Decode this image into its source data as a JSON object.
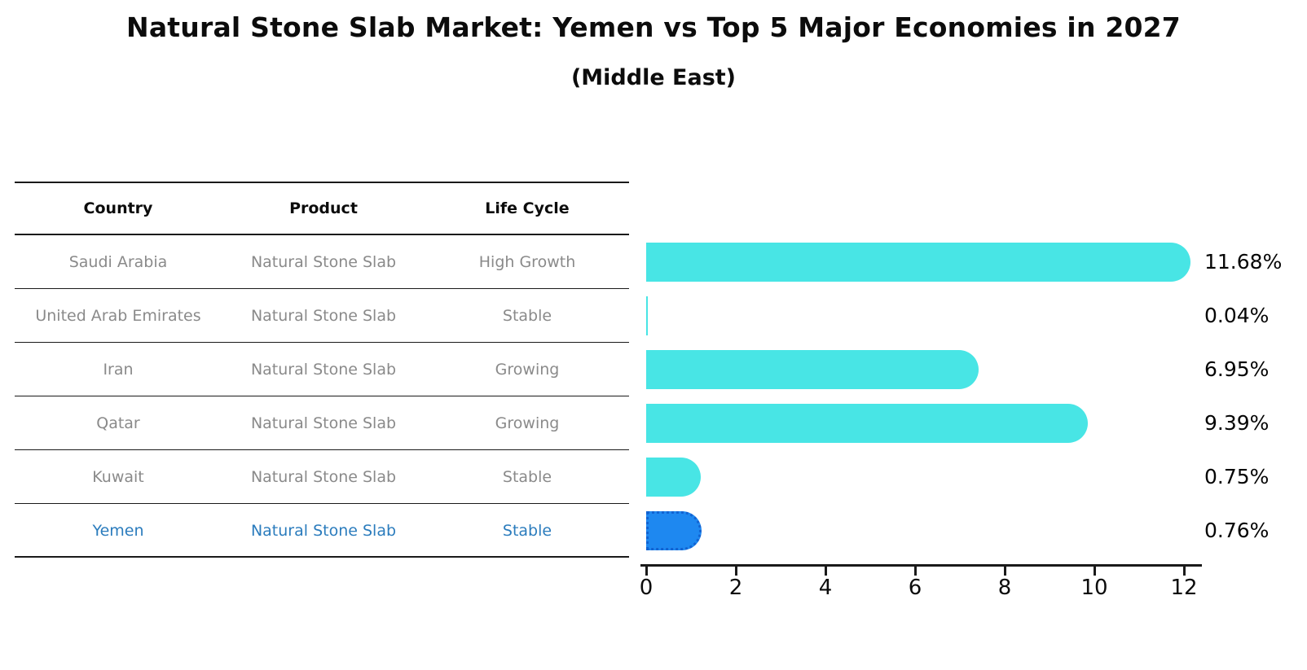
{
  "title": "Natural Stone Slab Market: Yemen vs Top 5 Major Economies in 2027",
  "subtitle": "(Middle East)",
  "table": {
    "headers": [
      "Country",
      "Product",
      "Life Cycle"
    ],
    "rows": [
      {
        "country": "Saudi Arabia",
        "product": "Natural Stone Slab",
        "life_cycle": "High Growth",
        "highlight": false
      },
      {
        "country": "United Arab Emirates",
        "product": "Natural Stone Slab",
        "life_cycle": "Stable",
        "highlight": false
      },
      {
        "country": "Iran",
        "product": "Natural Stone Slab",
        "life_cycle": "Growing",
        "highlight": false
      },
      {
        "country": "Qatar",
        "product": "Natural Stone Slab",
        "life_cycle": "Growing",
        "highlight": false
      },
      {
        "country": "Kuwait",
        "product": "Natural Stone Slab",
        "life_cycle": "Stable",
        "highlight": false
      },
      {
        "country": "Yemen",
        "product": "Natural Stone Slab",
        "life_cycle": "Stable",
        "highlight": true
      }
    ]
  },
  "chart_data": {
    "type": "bar",
    "orientation": "horizontal",
    "title": "Natural Stone Slab Market: Yemen vs Top 5 Major Economies in 2027 (Middle East)",
    "categories": [
      "Saudi Arabia",
      "United Arab Emirates",
      "Iran",
      "Qatar",
      "Kuwait",
      "Yemen"
    ],
    "values": [
      11.68,
      0.04,
      6.95,
      9.39,
      0.75,
      0.76
    ],
    "value_labels": [
      "11.68%",
      "0.04%",
      "6.95%",
      "9.39%",
      "0.75%",
      "0.76%"
    ],
    "unit": "percent",
    "x_ticks": [
      0,
      2,
      4,
      6,
      8,
      10,
      12
    ],
    "xlim": [
      0,
      12
    ],
    "grid": false,
    "legend": "none",
    "bar_color": "#48e5e5",
    "highlight_index": 5,
    "highlight_color": "#1e88f0",
    "highlight_edge_color": "#1263d2",
    "highlight_edge_style": "dotted"
  },
  "colors": {
    "text": "#0c0c0c",
    "row_text": "#8a8a8a",
    "highlight_text": "#2b7cbd",
    "line": "#1a1a1a",
    "background": "#ffffff"
  }
}
